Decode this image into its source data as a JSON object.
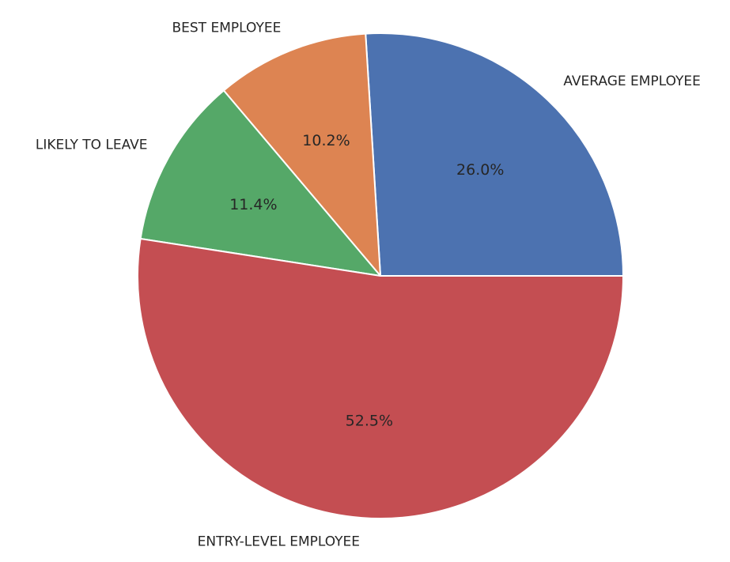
{
  "chart_data": {
    "type": "pie",
    "title": "",
    "start_angle_deg": 0,
    "direction": "counterclockwise",
    "slices": [
      {
        "label": "AVERAGE EMPLOYEE",
        "value": 26.0,
        "pct_label": "26.0%",
        "color": "#4c72b0"
      },
      {
        "label": "BEST EMPLOYEE",
        "value": 10.2,
        "pct_label": "10.2%",
        "color": "#dd8452"
      },
      {
        "label": "LIKELY TO LEAVE",
        "value": 11.4,
        "pct_label": "11.4%",
        "color": "#55a868"
      },
      {
        "label": "ENTRY-LEVEL EMPLOYEE",
        "value": 52.5,
        "pct_label": "52.5%",
        "color": "#c44e52"
      }
    ],
    "legend": "none"
  }
}
